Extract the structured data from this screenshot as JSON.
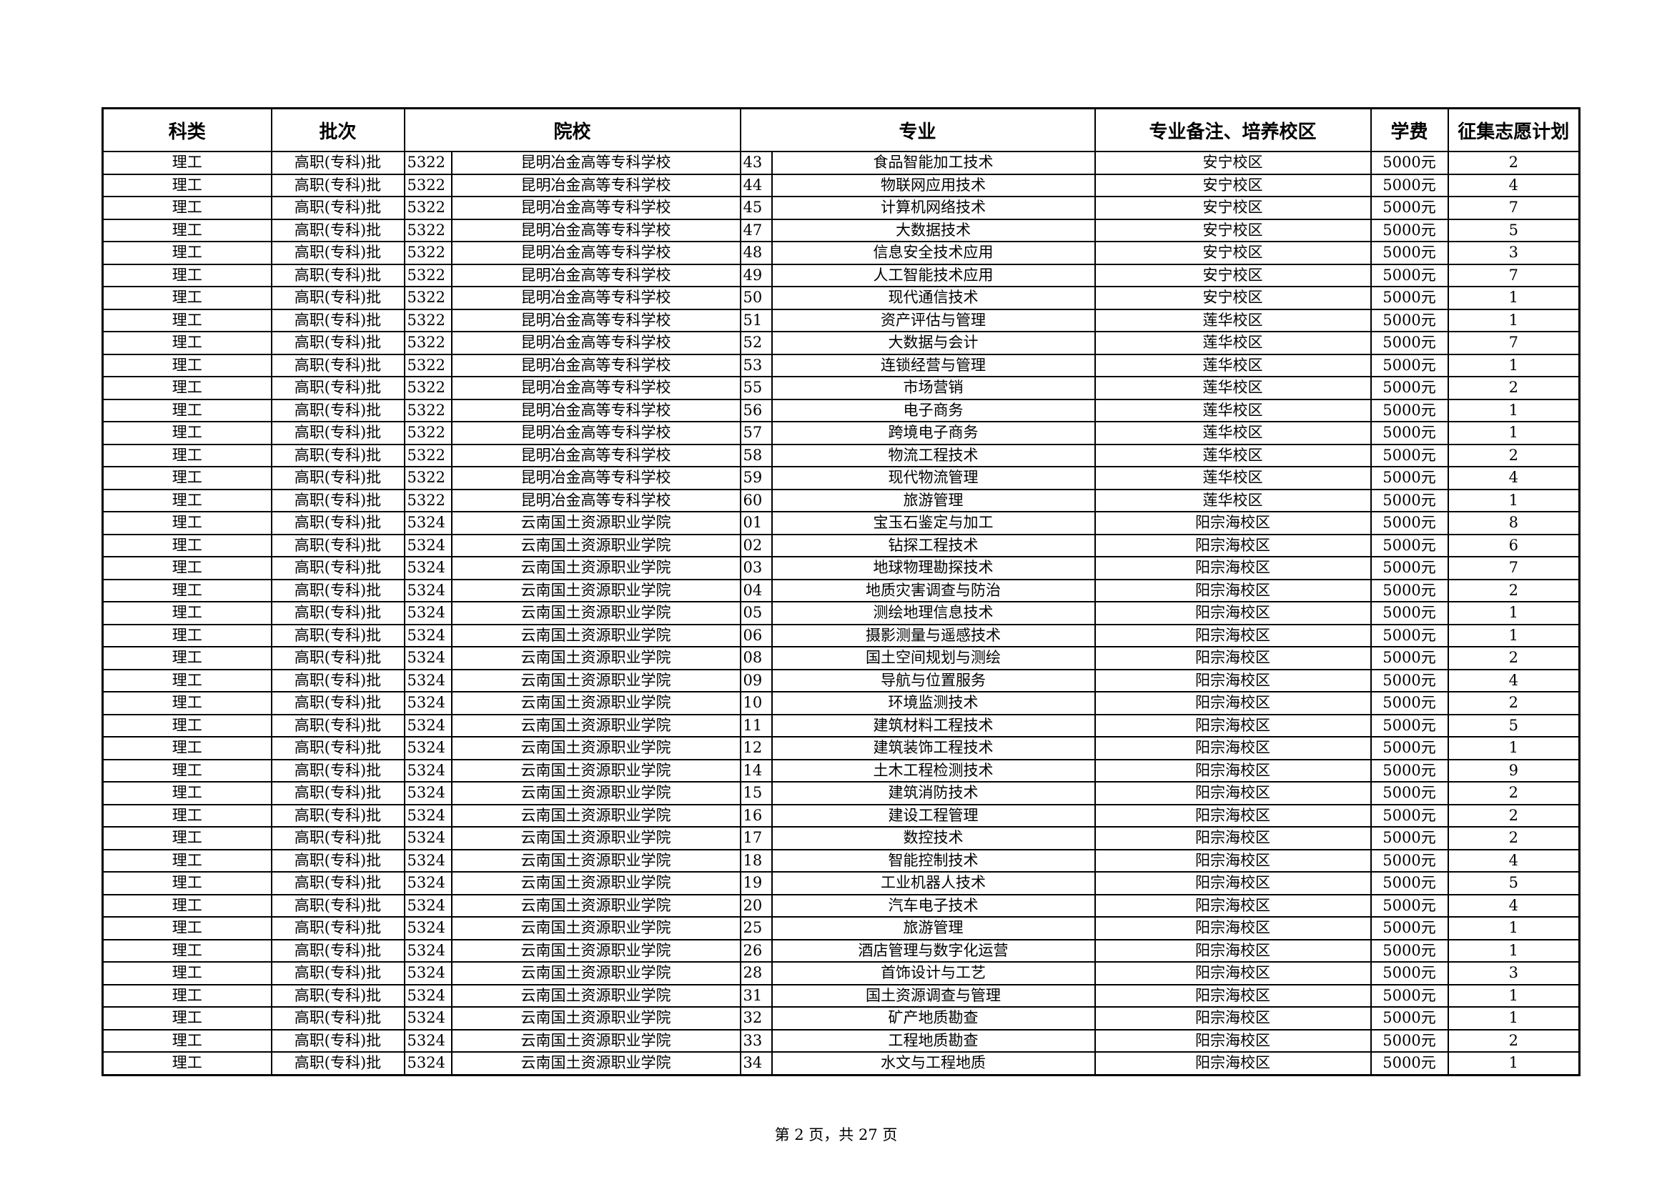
{
  "headers": [
    "科类",
    "批次",
    "院校",
    "专业",
    "专业备注、培养校区",
    "学费",
    "征集志愿计划"
  ],
  "rows": [
    [
      "理工",
      "高职(专科)批",
      "5322",
      "昆明冶金高等专科学校",
      "43",
      "食品智能加工技术",
      "安宁校区",
      "5000元",
      "2"
    ],
    [
      "理工",
      "高职(专科)批",
      "5322",
      "昆明冶金高等专科学校",
      "44",
      "物联网应用技术",
      "安宁校区",
      "5000元",
      "4"
    ],
    [
      "理工",
      "高职(专科)批",
      "5322",
      "昆明冶金高等专科学校",
      "45",
      "计算机网络技术",
      "安宁校区",
      "5000元",
      "7"
    ],
    [
      "理工",
      "高职(专科)批",
      "5322",
      "昆明冶金高等专科学校",
      "47",
      "大数据技术",
      "安宁校区",
      "5000元",
      "5"
    ],
    [
      "理工",
      "高职(专科)批",
      "5322",
      "昆明冶金高等专科学校",
      "48",
      "信息安全技术应用",
      "安宁校区",
      "5000元",
      "3"
    ],
    [
      "理工",
      "高职(专科)批",
      "5322",
      "昆明冶金高等专科学校",
      "49",
      "人工智能技术应用",
      "安宁校区",
      "5000元",
      "7"
    ],
    [
      "理工",
      "高职(专科)批",
      "5322",
      "昆明冶金高等专科学校",
      "50",
      "现代通信技术",
      "安宁校区",
      "5000元",
      "1"
    ],
    [
      "理工",
      "高职(专科)批",
      "5322",
      "昆明冶金高等专科学校",
      "51",
      "资产评估与管理",
      "莲华校区",
      "5000元",
      "1"
    ],
    [
      "理工",
      "高职(专科)批",
      "5322",
      "昆明冶金高等专科学校",
      "52",
      "大数据与会计",
      "莲华校区",
      "5000元",
      "7"
    ],
    [
      "理工",
      "高职(专科)批",
      "5322",
      "昆明冶金高等专科学校",
      "53",
      "连锁经营与管理",
      "莲华校区",
      "5000元",
      "1"
    ],
    [
      "理工",
      "高职(专科)批",
      "5322",
      "昆明冶金高等专科学校",
      "55",
      "市场营销",
      "莲华校区",
      "5000元",
      "2"
    ],
    [
      "理工",
      "高职(专科)批",
      "5322",
      "昆明冶金高等专科学校",
      "56",
      "电子商务",
      "莲华校区",
      "5000元",
      "1"
    ],
    [
      "理工",
      "高职(专科)批",
      "5322",
      "昆明冶金高等专科学校",
      "57",
      "跨境电子商务",
      "莲华校区",
      "5000元",
      "1"
    ],
    [
      "理工",
      "高职(专科)批",
      "5322",
      "昆明冶金高等专科学校",
      "58",
      "物流工程技术",
      "莲华校区",
      "5000元",
      "2"
    ],
    [
      "理工",
      "高职(专科)批",
      "5322",
      "昆明冶金高等专科学校",
      "59",
      "现代物流管理",
      "莲华校区",
      "5000元",
      "4"
    ],
    [
      "理工",
      "高职(专科)批",
      "5322",
      "昆明冶金高等专科学校",
      "60",
      "旅游管理",
      "莲华校区",
      "5000元",
      "1"
    ],
    [
      "理工",
      "高职(专科)批",
      "5324",
      "云南国土资源职业学院",
      "01",
      "宝玉石鉴定与加工",
      "阳宗海校区",
      "5000元",
      "8"
    ],
    [
      "理工",
      "高职(专科)批",
      "5324",
      "云南国土资源职业学院",
      "02",
      "钻探工程技术",
      "阳宗海校区",
      "5000元",
      "6"
    ],
    [
      "理工",
      "高职(专科)批",
      "5324",
      "云南国土资源职业学院",
      "03",
      "地球物理勘探技术",
      "阳宗海校区",
      "5000元",
      "7"
    ],
    [
      "理工",
      "高职(专科)批",
      "5324",
      "云南国土资源职业学院",
      "04",
      "地质灾害调查与防治",
      "阳宗海校区",
      "5000元",
      "2"
    ],
    [
      "理工",
      "高职(专科)批",
      "5324",
      "云南国土资源职业学院",
      "05",
      "测绘地理信息技术",
      "阳宗海校区",
      "5000元",
      "1"
    ],
    [
      "理工",
      "高职(专科)批",
      "5324",
      "云南国土资源职业学院",
      "06",
      "摄影测量与遥感技术",
      "阳宗海校区",
      "5000元",
      "1"
    ],
    [
      "理工",
      "高职(专科)批",
      "5324",
      "云南国土资源职业学院",
      "08",
      "国土空间规划与测绘",
      "阳宗海校区",
      "5000元",
      "2"
    ],
    [
      "理工",
      "高职(专科)批",
      "5324",
      "云南国土资源职业学院",
      "09",
      "导航与位置服务",
      "阳宗海校区",
      "5000元",
      "4"
    ],
    [
      "理工",
      "高职(专科)批",
      "5324",
      "云南国土资源职业学院",
      "10",
      "环境监测技术",
      "阳宗海校区",
      "5000元",
      "2"
    ],
    [
      "理工",
      "高职(专科)批",
      "5324",
      "云南国土资源职业学院",
      "11",
      "建筑材料工程技术",
      "阳宗海校区",
      "5000元",
      "5"
    ],
    [
      "理工",
      "高职(专科)批",
      "5324",
      "云南国土资源职业学院",
      "12",
      "建筑装饰工程技术",
      "阳宗海校区",
      "5000元",
      "1"
    ],
    [
      "理工",
      "高职(专科)批",
      "5324",
      "云南国土资源职业学院",
      "14",
      "土木工程检测技术",
      "阳宗海校区",
      "5000元",
      "9"
    ],
    [
      "理工",
      "高职(专科)批",
      "5324",
      "云南国土资源职业学院",
      "15",
      "建筑消防技术",
      "阳宗海校区",
      "5000元",
      "2"
    ],
    [
      "理工",
      "高职(专科)批",
      "5324",
      "云南国土资源职业学院",
      "16",
      "建设工程管理",
      "阳宗海校区",
      "5000元",
      "2"
    ],
    [
      "理工",
      "高职(专科)批",
      "5324",
      "云南国土资源职业学院",
      "17",
      "数控技术",
      "阳宗海校区",
      "5000元",
      "2"
    ],
    [
      "理工",
      "高职(专科)批",
      "5324",
      "云南国土资源职业学院",
      "18",
      "智能控制技术",
      "阳宗海校区",
      "5000元",
      "4"
    ],
    [
      "理工",
      "高职(专科)批",
      "5324",
      "云南国土资源职业学院",
      "19",
      "工业机器人技术",
      "阳宗海校区",
      "5000元",
      "5"
    ],
    [
      "理工",
      "高职(专科)批",
      "5324",
      "云南国土资源职业学院",
      "20",
      "汽车电子技术",
      "阳宗海校区",
      "5000元",
      "4"
    ],
    [
      "理工",
      "高职(专科)批",
      "5324",
      "云南国土资源职业学院",
      "25",
      "旅游管理",
      "阳宗海校区",
      "5000元",
      "1"
    ],
    [
      "理工",
      "高职(专科)批",
      "5324",
      "云南国土资源职业学院",
      "26",
      "酒店管理与数字化运营",
      "阳宗海校区",
      "5000元",
      "1"
    ],
    [
      "理工",
      "高职(专科)批",
      "5324",
      "云南国土资源职业学院",
      "28",
      "首饰设计与工艺",
      "阳宗海校区",
      "5000元",
      "3"
    ],
    [
      "理工",
      "高职(专科)批",
      "5324",
      "云南国土资源职业学院",
      "31",
      "国土资源调查与管理",
      "阳宗海校区",
      "5000元",
      "1"
    ],
    [
      "理工",
      "高职(专科)批",
      "5324",
      "云南国土资源职业学院",
      "32",
      "矿产地质勘查",
      "阳宗海校区",
      "5000元",
      "1"
    ],
    [
      "理工",
      "高职(专科)批",
      "5324",
      "云南国土资源职业学院",
      "33",
      "工程地质勘查",
      "阳宗海校区",
      "5000元",
      "2"
    ],
    [
      "理工",
      "高职(专科)批",
      "5324",
      "云南国土资源职业学院",
      "34",
      "水文与工程地质",
      "阳宗海校区",
      "5000元",
      "1"
    ]
  ],
  "footer": "第 2 页，共 27 页"
}
